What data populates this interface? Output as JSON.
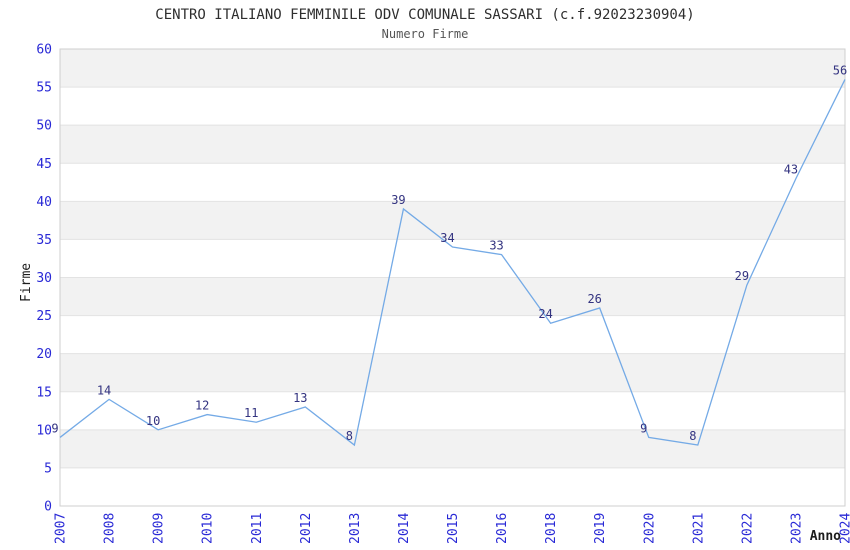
{
  "chart_data": {
    "type": "line",
    "title": "CENTRO ITALIANO FEMMINILE ODV COMUNALE SASSARI (c.f.92023230904)",
    "subtitle": "Numero Firme",
    "xlabel": "Anno",
    "ylabel": "Firme",
    "categories": [
      "2007",
      "2008",
      "2009",
      "2010",
      "2011",
      "2012",
      "2013",
      "2014",
      "2015",
      "2016",
      "2018",
      "2019",
      "2020",
      "2021",
      "2022",
      "2023",
      "2024"
    ],
    "values": [
      9,
      14,
      10,
      12,
      11,
      13,
      8,
      39,
      34,
      33,
      24,
      26,
      9,
      8,
      29,
      43,
      56
    ],
    "ylim": [
      0,
      60
    ],
    "ytick_step": 5,
    "ytick_labels": [
      "0",
      "5",
      "10",
      "15",
      "20",
      "25",
      "30",
      "35",
      "40",
      "45",
      "50",
      "55",
      "60"
    ],
    "grid": "horizontal",
    "banded_background": true,
    "legend": "none",
    "data_labels_shown": true,
    "colors": {
      "line": "#74aae6",
      "tick_label": "#2929d6",
      "data_label": "#333380",
      "title": "#2e2e2e",
      "subtitle": "#555555",
      "axis_name": "#1c1c1c",
      "band_gray": "#f2f2f2",
      "band_white": "#ffffff",
      "gridline": "#e3e3e3",
      "plot_border": "#cfcfcf",
      "background": "#ffffff"
    }
  }
}
